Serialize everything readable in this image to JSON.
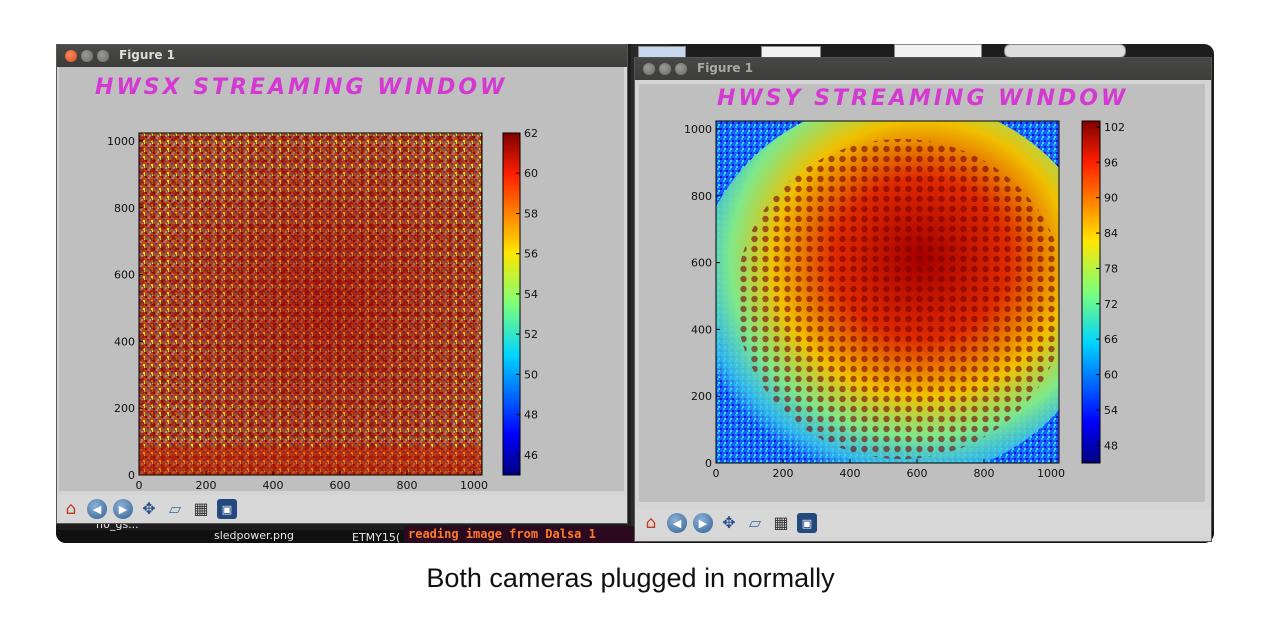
{
  "caption": "Both cameras plugged in normally",
  "background": {
    "file_label": "sledpower.png",
    "file_label_2": "ETMY15(",
    "terminal_text": "reading image from Dalsa 1",
    "left_label": "h0_gs..."
  },
  "windows": [
    {
      "title": "Figure 1",
      "annotation": "HWSX STREAMING WINDOW",
      "x_ticks": [
        "0",
        "200",
        "400",
        "600",
        "800",
        "1000"
      ],
      "y_ticks": [
        "0",
        "200",
        "400",
        "600",
        "800",
        "1000"
      ],
      "colorbar_ticks": [
        "46",
        "48",
        "50",
        "52",
        "54",
        "56",
        "58",
        "60",
        "62"
      ],
      "colorbar_range": [
        45,
        62
      ],
      "toolbar": [
        "home-icon",
        "back-icon",
        "forward-icon",
        "pan-icon",
        "zoom-icon",
        "subplots-icon",
        "save-icon"
      ]
    },
    {
      "title": "Figure 1",
      "annotation": "HWSY STREAMING WINDOW",
      "x_ticks": [
        "0",
        "200",
        "400",
        "600",
        "800",
        "1000"
      ],
      "y_ticks": [
        "0",
        "200",
        "400",
        "600",
        "800",
        "1000"
      ],
      "colorbar_ticks": [
        "48",
        "54",
        "60",
        "66",
        "72",
        "78",
        "84",
        "90",
        "96",
        "102"
      ],
      "colorbar_range": [
        45,
        103
      ],
      "toolbar": [
        "home-icon",
        "back-icon",
        "forward-icon",
        "pan-icon",
        "zoom-icon",
        "subplots-icon",
        "save-icon"
      ]
    }
  ],
  "colors": {
    "annotation": "#d43ad2",
    "jet_low": "#00007f",
    "jet_high": "#7f0000"
  }
}
